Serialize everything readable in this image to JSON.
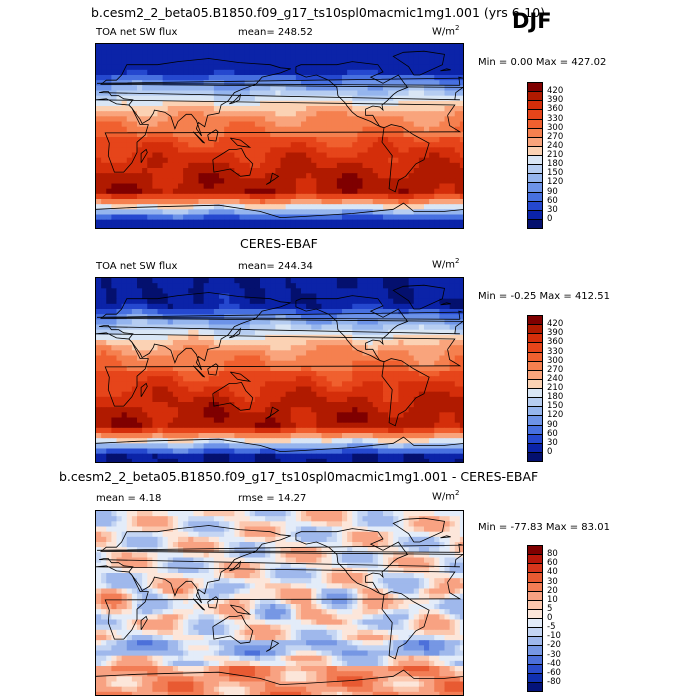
{
  "season": "DJF",
  "panels": [
    {
      "title": "b.cesm2_2_beta05.B1850.f09_g17_ts10spl0macmic1mg1.001 (yrs 6-10)",
      "variable": "TOA net SW flux",
      "stat": "mean=  248.52",
      "units": "W/m",
      "units_exp": "2",
      "minmax": "Min =   0.00  Max =  427.02",
      "colorbar": {
        "labels": [
          "420",
          "390",
          "360",
          "330",
          "300",
          "270",
          "240",
          "210",
          "180",
          "150",
          "120",
          "90",
          "60",
          "30",
          "0"
        ],
        "colors": [
          "#7f0000",
          "#b01a00",
          "#d42e0a",
          "#e6451a",
          "#f0602f",
          "#f5804f",
          "#f9a47c",
          "#fbd2b4",
          "#d9e6f5",
          "#b6cdf1",
          "#95b5ee",
          "#6d93e8",
          "#4770e0",
          "#2548cf",
          "#0b23a8",
          "#04106e"
        ]
      },
      "field": "sw"
    },
    {
      "title": "CERES-EBAF",
      "variable": "TOA net SW flux",
      "stat": "mean=  244.34",
      "units": "W/m",
      "units_exp": "2",
      "minmax": "Min =   -0.25  Max =  412.51",
      "colorbar": {
        "labels": [
          "420",
          "390",
          "360",
          "330",
          "300",
          "270",
          "240",
          "210",
          "180",
          "150",
          "120",
          "90",
          "60",
          "30",
          "0"
        ],
        "colors": [
          "#7f0000",
          "#b01a00",
          "#d42e0a",
          "#e6451a",
          "#f0602f",
          "#f5804f",
          "#f9a47c",
          "#fbd2b4",
          "#d9e6f5",
          "#b6cdf1",
          "#95b5ee",
          "#6d93e8",
          "#4770e0",
          "#2548cf",
          "#0b23a8",
          "#04106e"
        ]
      },
      "field": "sw"
    },
    {
      "title": "b.cesm2_2_beta05.B1850.f09_g17_ts10spl0macmic1mg1.001 - CERES-EBAF",
      "stat_mean": "mean =    4.18",
      "stat_rmse": "rmse =   14.27",
      "units": "W/m",
      "units_exp": "2",
      "minmax": "Min =  -77.83  Max =   83.01",
      "colorbar": {
        "labels": [
          "80",
          "60",
          "40",
          "30",
          "20",
          "10",
          "5",
          "0",
          "-5",
          "-10",
          "-20",
          "-30",
          "-40",
          "-60",
          "-80"
        ],
        "colors": [
          "#7f0000",
          "#b8170a",
          "#d7361c",
          "#e85a32",
          "#f27d55",
          "#f8a282",
          "#fbc7ae",
          "#fce6da",
          "#e3ecf9",
          "#c4d5f3",
          "#9fb8ec",
          "#7697e4",
          "#4c70da",
          "#2a4ccb",
          "#1030b0",
          "#04137a"
        ]
      },
      "field": "diff"
    }
  ]
}
